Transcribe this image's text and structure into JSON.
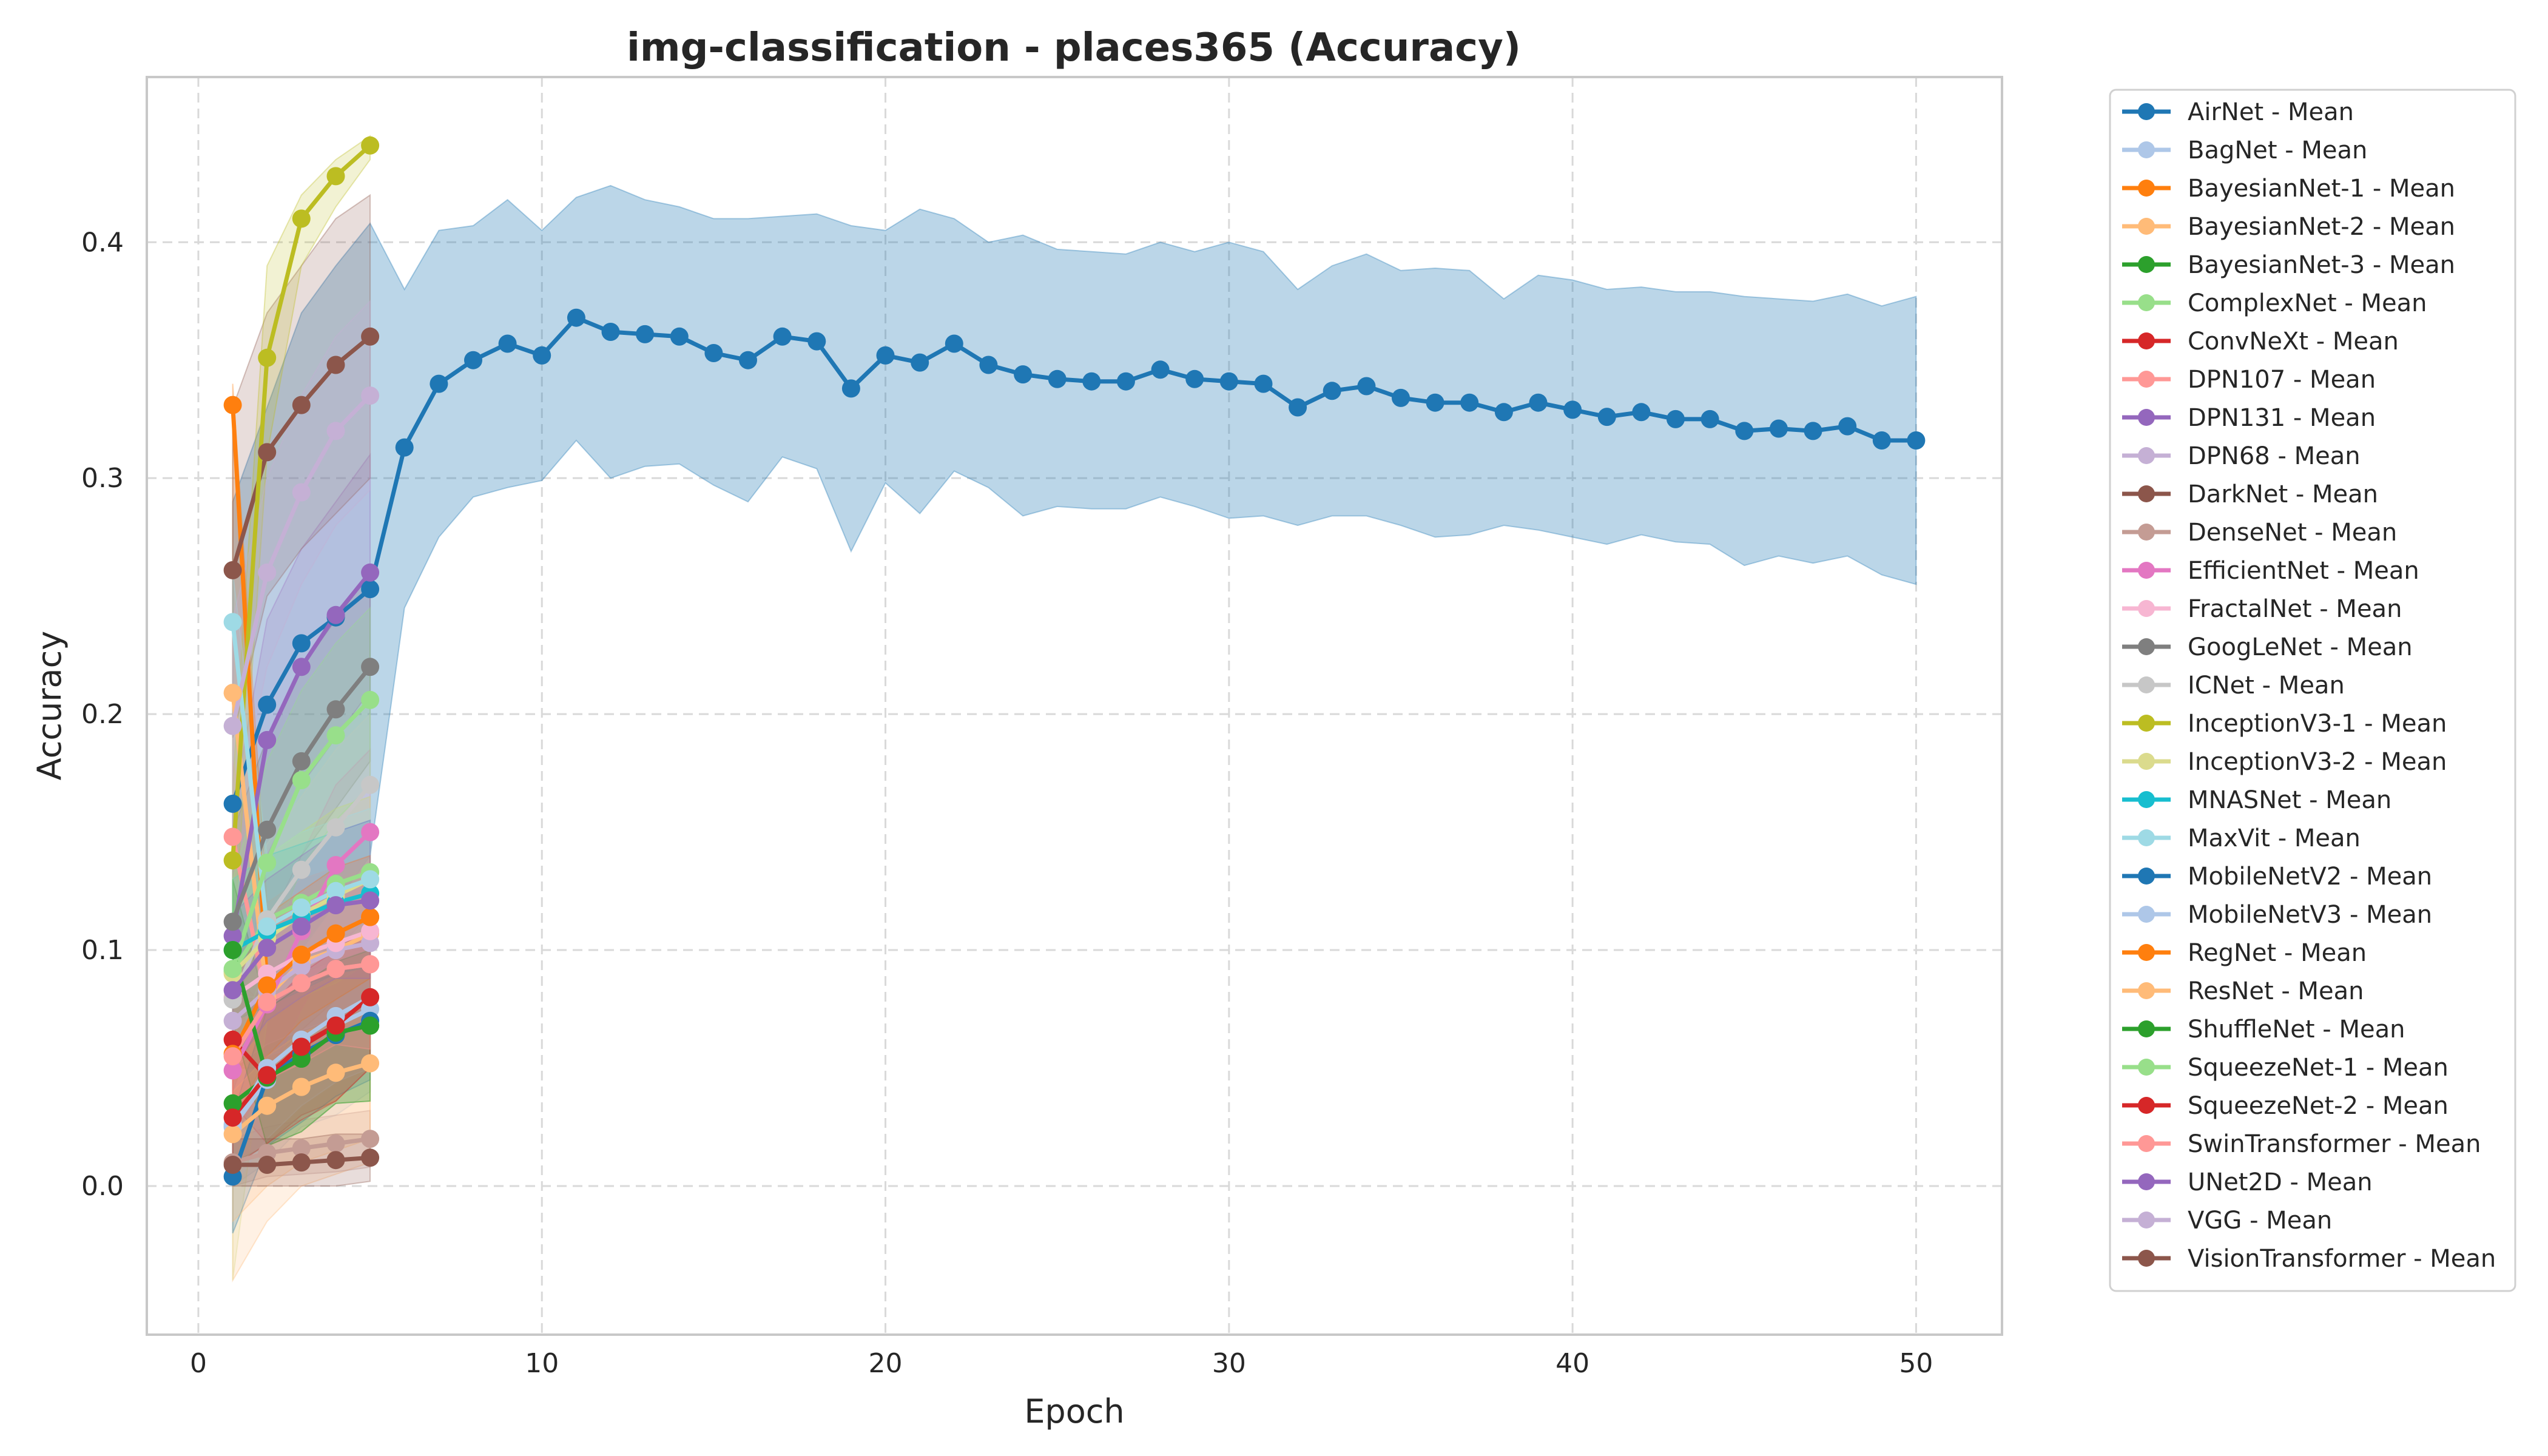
{
  "chart_data": {
    "type": "line",
    "title": "img-classification - places365 (Accuracy)",
    "xlabel": "Epoch",
    "ylabel": "Accuracy",
    "xlim": [
      -1.5,
      52.5
    ],
    "ylim": [
      -0.063,
      0.47
    ],
    "xticks": [
      0,
      10,
      20,
      30,
      40,
      50
    ],
    "yticks": [
      0.0,
      0.1,
      0.2,
      0.3,
      0.4
    ],
    "ytick_labels": [
      "0.0",
      "0.1",
      "0.2",
      "0.3",
      "0.4"
    ],
    "grid": true,
    "legend_position": "outside-right",
    "series": [
      {
        "name": "AirNet - Mean",
        "color": "#1f77b4",
        "x": [
          1,
          2,
          3,
          4,
          5,
          6,
          7,
          8,
          9,
          10,
          11,
          12,
          13,
          14,
          15,
          16,
          17,
          18,
          19,
          20,
          21,
          22,
          23,
          24,
          25,
          26,
          27,
          28,
          29,
          30,
          31,
          32,
          33,
          34,
          35,
          36,
          37,
          38,
          39,
          40,
          41,
          42,
          43,
          44,
          45,
          46,
          47,
          48,
          49,
          50
        ],
        "y": [
          0.162,
          0.204,
          0.23,
          0.241,
          0.253,
          0.313,
          0.34,
          0.35,
          0.357,
          0.352,
          0.368,
          0.362,
          0.361,
          0.36,
          0.353,
          0.35,
          0.36,
          0.358,
          0.338,
          0.352,
          0.349,
          0.357,
          0.348,
          0.344,
          0.342,
          0.341,
          0.341,
          0.346,
          0.342,
          0.341,
          0.34,
          0.33,
          0.337,
          0.339,
          0.334,
          0.332,
          0.332,
          0.328,
          0.332,
          0.329,
          0.326,
          0.328,
          0.325,
          0.325,
          0.32,
          0.321,
          0.32,
          0.322,
          0.316,
          0.316
        ],
        "upper": [
          0.29,
          0.33,
          0.37,
          0.39,
          0.408,
          0.38,
          0.405,
          0.407,
          0.418,
          0.405,
          0.419,
          0.424,
          0.418,
          0.415,
          0.41,
          0.41,
          0.411,
          0.412,
          0.407,
          0.405,
          0.414,
          0.41,
          0.4,
          0.403,
          0.397,
          0.396,
          0.395,
          0.4,
          0.396,
          0.4,
          0.396,
          0.38,
          0.39,
          0.395,
          0.388,
          0.389,
          0.388,
          0.376,
          0.386,
          0.384,
          0.38,
          0.381,
          0.379,
          0.379,
          0.377,
          0.376,
          0.375,
          0.378,
          0.373,
          0.377
        ],
        "lower": [
          0.04,
          0.08,
          0.1,
          0.12,
          0.14,
          0.245,
          0.275,
          0.292,
          0.296,
          0.299,
          0.316,
          0.3,
          0.305,
          0.306,
          0.297,
          0.29,
          0.309,
          0.304,
          0.269,
          0.298,
          0.285,
          0.303,
          0.296,
          0.284,
          0.288,
          0.287,
          0.287,
          0.292,
          0.288,
          0.283,
          0.284,
          0.28,
          0.284,
          0.284,
          0.28,
          0.275,
          0.276,
          0.28,
          0.278,
          0.275,
          0.272,
          0.276,
          0.273,
          0.272,
          0.263,
          0.267,
          0.264,
          0.267,
          0.259,
          0.255
        ]
      },
      {
        "name": "BagNet - Mean",
        "color": "#aec7e8",
        "x": [
          1,
          2,
          3,
          4,
          5
        ],
        "y": [
          0.025,
          0.045,
          0.06,
          0.068,
          0.075
        ],
        "upper": [
          0.06,
          0.08,
          0.095,
          0.105,
          0.11
        ],
        "lower": [
          0.0,
          0.01,
          0.025,
          0.03,
          0.04
        ]
      },
      {
        "name": "BayesianNet-1 - Mean",
        "color": "#ff7f0e",
        "x": [
          1,
          2,
          3,
          4,
          5
        ],
        "y": [
          0.331,
          0.085,
          0.098,
          0.107,
          0.114
        ],
        "upper": [
          0.34,
          0.12,
          0.13,
          0.135,
          0.14
        ],
        "lower": [
          0.05,
          0.05,
          0.066,
          0.079,
          0.088
        ]
      },
      {
        "name": "BayesianNet-2 - Mean",
        "color": "#ffbb78",
        "x": [
          1,
          2,
          3,
          4,
          5
        ],
        "y": [
          0.209,
          0.08,
          0.095,
          0.1,
          0.107
        ],
        "upper": [
          0.24,
          0.115,
          0.125,
          0.13,
          0.135
        ],
        "lower": [
          -0.04,
          -0.015,
          0.0,
          0.005,
          0.01
        ]
      },
      {
        "name": "BayesianNet-3 - Mean",
        "color": "#2ca02c",
        "x": [
          1,
          2,
          3,
          4,
          5
        ],
        "y": [
          0.035,
          0.046,
          0.054,
          0.065,
          0.068
        ],
        "upper": [
          0.06,
          0.075,
          0.085,
          0.095,
          0.1
        ],
        "lower": [
          0.01,
          0.017,
          0.023,
          0.035,
          0.036
        ]
      },
      {
        "name": "ComplexNet - Mean",
        "color": "#98df8a",
        "x": [
          1,
          2,
          3,
          4,
          5
        ],
        "y": [
          0.091,
          0.113,
          0.12,
          0.128,
          0.133
        ],
        "upper": [
          0.12,
          0.14,
          0.15,
          0.16,
          0.165
        ],
        "lower": [
          0.06,
          0.085,
          0.09,
          0.096,
          0.1
        ]
      },
      {
        "name": "ConvNeXt - Mean",
        "color": "#d62728",
        "x": [
          1,
          2,
          3,
          4,
          5
        ],
        "y": [
          0.062,
          0.046,
          0.06,
          0.068,
          0.08
        ],
        "upper": [
          0.09,
          0.075,
          0.09,
          0.1,
          0.11
        ],
        "lower": [
          0.035,
          0.018,
          0.03,
          0.036,
          0.05
        ]
      },
      {
        "name": "DPN107 - Mean",
        "color": "#ff9896",
        "x": [
          1,
          2,
          3,
          4,
          5
        ],
        "y": [
          0.148,
          0.078,
          0.086,
          0.092,
          0.094
        ],
        "upper": [
          0.18,
          0.11,
          0.12,
          0.125,
          0.13
        ],
        "lower": [
          0.02,
          0.045,
          0.052,
          0.06,
          0.058
        ]
      },
      {
        "name": "DPN131 - Mean",
        "color": "#9467bd",
        "x": [
          1,
          2,
          3,
          4,
          5
        ],
        "y": [
          0.106,
          0.189,
          0.22,
          0.242,
          0.26
        ],
        "upper": [
          0.16,
          0.24,
          0.27,
          0.29,
          0.31
        ],
        "lower": [
          0.05,
          0.14,
          0.17,
          0.19,
          0.21
        ]
      },
      {
        "name": "DPN68 - Mean",
        "color": "#c5b0d5",
        "x": [
          1,
          2,
          3,
          4,
          5
        ],
        "y": [
          0.07,
          0.083,
          0.093,
          0.1,
          0.103
        ],
        "upper": [
          0.1,
          0.11,
          0.125,
          0.135,
          0.14
        ],
        "lower": [
          0.04,
          0.055,
          0.06,
          0.065,
          0.066
        ]
      },
      {
        "name": "DarkNet - Mean",
        "color": "#8c564b",
        "x": [
          1,
          2,
          3,
          4,
          5
        ],
        "y": [
          0.261,
          0.311,
          0.331,
          0.348,
          0.36
        ],
        "upper": [
          0.33,
          0.37,
          0.39,
          0.41,
          0.42
        ],
        "lower": [
          0.19,
          0.25,
          0.27,
          0.285,
          0.3
        ]
      },
      {
        "name": "DenseNet - Mean",
        "color": "#c49c94",
        "x": [
          1,
          2,
          3,
          4,
          5
        ],
        "y": [
          0.01,
          0.014,
          0.016,
          0.018,
          0.02
        ],
        "upper": [
          0.02,
          0.025,
          0.028,
          0.03,
          0.032
        ],
        "lower": [
          0.0,
          0.004,
          0.005,
          0.006,
          0.008
        ]
      },
      {
        "name": "EfficientNet - Mean",
        "color": "#e377c2",
        "x": [
          1,
          2,
          3,
          4,
          5
        ],
        "y": [
          0.049,
          0.077,
          0.108,
          0.136,
          0.15
        ],
        "upper": [
          0.08,
          0.11,
          0.14,
          0.17,
          0.185
        ],
        "lower": [
          0.02,
          0.045,
          0.075,
          0.1,
          0.115
        ]
      },
      {
        "name": "FractalNet - Mean",
        "color": "#f7b6d2",
        "x": [
          1,
          2,
          3,
          4,
          5
        ],
        "y": [
          0.08,
          0.09,
          0.098,
          0.103,
          0.108
        ],
        "upper": [
          0.11,
          0.12,
          0.13,
          0.135,
          0.14
        ],
        "lower": [
          0.05,
          0.06,
          0.066,
          0.071,
          0.076
        ]
      },
      {
        "name": "GoogLeNet - Mean",
        "color": "#7f7f7f",
        "x": [
          1,
          2,
          3,
          4,
          5
        ],
        "y": [
          0.112,
          0.151,
          0.18,
          0.202,
          0.22
        ],
        "upper": [
          0.15,
          0.19,
          0.22,
          0.24,
          0.26
        ],
        "lower": [
          0.075,
          0.11,
          0.14,
          0.16,
          0.18
        ]
      },
      {
        "name": "ICNet - Mean",
        "color": "#c7c7c7",
        "x": [
          1,
          2,
          3,
          4,
          5
        ],
        "y": [
          0.079,
          0.113,
          0.134,
          0.152,
          0.17
        ],
        "upper": [
          0.11,
          0.145,
          0.165,
          0.185,
          0.2
        ],
        "lower": [
          0.05,
          0.08,
          0.1,
          0.12,
          0.14
        ]
      },
      {
        "name": "InceptionV3-1 - Mean",
        "color": "#bcbd22",
        "x": [
          1,
          2,
          3,
          4,
          5
        ],
        "y": [
          0.138,
          0.351,
          0.41,
          0.428,
          0.441
        ],
        "upper": [
          0.17,
          0.39,
          0.42,
          0.435,
          0.445
        ],
        "lower": [
          0.1,
          0.31,
          0.39,
          0.415,
          0.435
        ]
      },
      {
        "name": "InceptionV3-2 - Mean",
        "color": "#dbdb8d",
        "x": [
          1,
          2,
          3,
          4,
          5
        ],
        "y": [
          0.09,
          0.105,
          0.115,
          0.123,
          0.13
        ],
        "upper": [
          0.13,
          0.14,
          0.15,
          0.16,
          0.165
        ],
        "lower": [
          -0.04,
          0.07,
          0.08,
          0.086,
          0.095
        ]
      },
      {
        "name": "MNASNet - Mean",
        "color": "#17becf",
        "x": [
          1,
          2,
          3,
          4,
          5
        ],
        "y": [
          0.1,
          0.108,
          0.114,
          0.12,
          0.124
        ],
        "upper": [
          0.13,
          0.14,
          0.145,
          0.15,
          0.155
        ],
        "lower": [
          0.07,
          0.076,
          0.083,
          0.09,
          0.093
        ]
      },
      {
        "name": "MaxVit - Mean",
        "color": "#9edae5",
        "x": [
          1,
          2,
          3,
          4,
          5
        ],
        "y": [
          0.239,
          0.11,
          0.118,
          0.125,
          0.13
        ],
        "upper": [
          0.26,
          0.14,
          0.15,
          0.155,
          0.16
        ],
        "lower": [
          0.08,
          0.08,
          0.086,
          0.095,
          0.1
        ]
      },
      {
        "name": "MobileNetV2 - Mean",
        "color": "#1f77b4",
        "x": [
          1,
          2,
          3,
          4,
          5
        ],
        "y": [
          0.004,
          0.046,
          0.056,
          0.064,
          0.07
        ],
        "upper": [
          0.03,
          0.075,
          0.085,
          0.09,
          0.095
        ],
        "lower": [
          -0.02,
          0.017,
          0.027,
          0.038,
          0.045
        ]
      },
      {
        "name": "MobileNetV3 - Mean",
        "color": "#aec7e8",
        "x": [
          1,
          2,
          3,
          4,
          5
        ],
        "y": [
          0.026,
          0.05,
          0.062,
          0.072,
          0.08
        ],
        "upper": [
          0.05,
          0.08,
          0.09,
          0.1,
          0.11
        ],
        "lower": [
          0.0,
          0.02,
          0.034,
          0.044,
          0.05
        ]
      },
      {
        "name": "RegNet - Mean",
        "color": "#ff7f0e",
        "x": [
          1,
          2,
          3,
          4,
          5
        ],
        "y": [
          0.056,
          0.085,
          0.098,
          0.107,
          0.114
        ],
        "upper": [
          0.085,
          0.115,
          0.125,
          0.135,
          0.14
        ],
        "lower": [
          0.027,
          0.055,
          0.07,
          0.079,
          0.088
        ]
      },
      {
        "name": "ResNet - Mean",
        "color": "#ffbb78",
        "x": [
          1,
          2,
          3,
          4,
          5
        ],
        "y": [
          0.022,
          0.034,
          0.042,
          0.048,
          0.052
        ],
        "upper": [
          0.04,
          0.055,
          0.065,
          0.07,
          0.075
        ],
        "lower": [
          -0.015,
          0.0,
          0.01,
          0.015,
          0.02
        ]
      },
      {
        "name": "ShuffleNet - Mean",
        "color": "#2ca02c",
        "x": [
          1,
          2,
          3,
          4,
          5
        ],
        "y": [
          0.1,
          0.046,
          0.054,
          0.065,
          0.068
        ],
        "upper": [
          0.13,
          0.075,
          0.085,
          0.095,
          0.1
        ],
        "lower": [
          0.07,
          0.017,
          0.023,
          0.035,
          0.036
        ]
      },
      {
        "name": "SqueezeNet-1 - Mean",
        "color": "#98df8a",
        "x": [
          1,
          2,
          3,
          4,
          5
        ],
        "y": [
          0.092,
          0.137,
          0.172,
          0.191,
          0.206
        ],
        "upper": [
          0.13,
          0.18,
          0.21,
          0.23,
          0.245
        ],
        "lower": [
          0.055,
          0.095,
          0.135,
          0.155,
          0.17
        ]
      },
      {
        "name": "SqueezeNet-2 - Mean",
        "color": "#d62728",
        "x": [
          1,
          2,
          3,
          4,
          5
        ],
        "y": [
          0.029,
          0.047,
          0.059,
          0.068,
          0.08
        ],
        "upper": [
          0.05,
          0.075,
          0.09,
          0.1,
          0.11
        ],
        "lower": [
          0.008,
          0.018,
          0.028,
          0.036,
          0.05
        ]
      },
      {
        "name": "SwinTransformer - Mean",
        "color": "#ff9896",
        "x": [
          1,
          2,
          3,
          4,
          5
        ],
        "y": [
          0.055,
          0.078,
          0.086,
          0.092,
          0.094
        ],
        "upper": [
          0.085,
          0.11,
          0.12,
          0.125,
          0.13
        ],
        "lower": [
          0.025,
          0.045,
          0.052,
          0.06,
          0.058
        ]
      },
      {
        "name": "UNet2D - Mean",
        "color": "#9467bd",
        "x": [
          1,
          2,
          3,
          4,
          5
        ],
        "y": [
          0.083,
          0.101,
          0.11,
          0.119,
          0.121
        ],
        "upper": [
          0.115,
          0.13,
          0.14,
          0.15,
          0.155
        ],
        "lower": [
          0.05,
          0.07,
          0.08,
          0.088,
          0.088
        ]
      },
      {
        "name": "VGG - Mean",
        "color": "#c5b0d5",
        "x": [
          1,
          2,
          3,
          4,
          5
        ],
        "y": [
          0.195,
          0.26,
          0.294,
          0.32,
          0.335
        ],
        "upper": [
          0.24,
          0.3,
          0.335,
          0.36,
          0.375
        ],
        "lower": [
          0.15,
          0.22,
          0.255,
          0.28,
          0.295
        ]
      },
      {
        "name": "VisionTransformer - Mean",
        "color": "#8c564b",
        "x": [
          1,
          2,
          3,
          4,
          5
        ],
        "y": [
          0.009,
          0.009,
          0.01,
          0.011,
          0.012
        ],
        "upper": [
          0.02,
          0.02,
          0.02,
          0.022,
          0.022
        ],
        "lower": [
          0.0,
          0.0,
          0.0,
          0.0,
          0.002
        ]
      }
    ]
  }
}
